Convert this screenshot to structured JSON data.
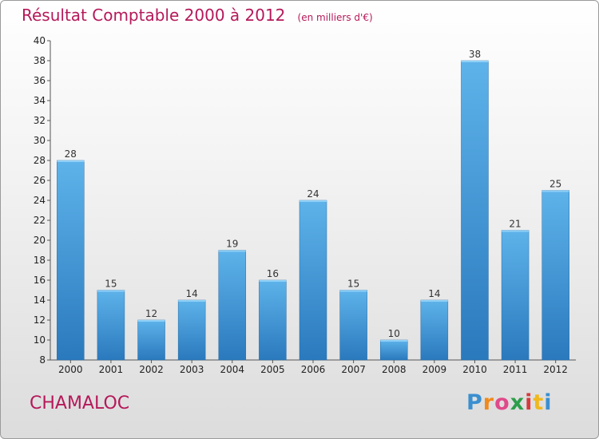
{
  "chart_data": {
    "type": "bar",
    "title": "Résultat Comptable 2000 à 2012",
    "subtitle": "(en milliers d'€)",
    "categories": [
      "2000",
      "2001",
      "2002",
      "2003",
      "2004",
      "2005",
      "2006",
      "2007",
      "2008",
      "2009",
      "2010",
      "2011",
      "2012"
    ],
    "values": [
      28,
      15,
      12,
      14,
      19,
      16,
      24,
      15,
      10,
      14,
      38,
      21,
      25
    ],
    "ylim": [
      8,
      40
    ],
    "yticks": [
      "8",
      "10",
      "12",
      "14",
      "16",
      "18",
      "20",
      "22",
      "24",
      "26",
      "28",
      "30",
      "32",
      "34",
      "36",
      "38",
      "40"
    ],
    "grid": false,
    "bar_color": "#4a9fdd"
  },
  "place_name": "CHAMALOC",
  "logo": {
    "letters": [
      "P",
      "r",
      "o",
      "x",
      "i",
      "t",
      "i"
    ],
    "colors": [
      "#3a8fd0",
      "#f08a1c",
      "#e04a8a",
      "#2e9e4a",
      "#d63a3a",
      "#f0b81c",
      "#3a8fd0"
    ]
  }
}
